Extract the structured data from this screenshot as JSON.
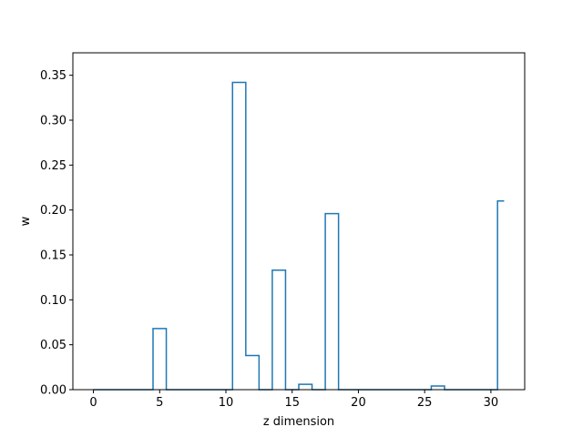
{
  "chart_data": {
    "type": "line",
    "drawstyle": "steps-mid",
    "title": "",
    "xlabel": "z dimension",
    "ylabel": "w",
    "xlim": [
      -1.55,
      32.55
    ],
    "ylim": [
      0,
      0.375
    ],
    "xticks": [
      0,
      5,
      10,
      15,
      20,
      25,
      30
    ],
    "xtick_labels": [
      "0",
      "5",
      "10",
      "15",
      "20",
      "25",
      "30"
    ],
    "yticks": [
      0.0,
      0.05,
      0.1,
      0.15,
      0.2,
      0.25,
      0.3,
      0.35
    ],
    "ytick_labels": [
      "0.00",
      "0.05",
      "0.10",
      "0.15",
      "0.20",
      "0.25",
      "0.30",
      "0.35"
    ],
    "grid": false,
    "series": [
      {
        "color": "#1f77b4",
        "x": [
          0,
          1,
          2,
          3,
          4,
          5,
          6,
          7,
          8,
          9,
          10,
          11,
          12,
          13,
          14,
          15,
          16,
          17,
          18,
          19,
          20,
          21,
          22,
          23,
          24,
          25,
          26,
          27,
          28,
          29,
          30,
          31
        ],
        "y": [
          0,
          0,
          0,
          0,
          0,
          0.068,
          0,
          0,
          0,
          0,
          0,
          0.342,
          0.038,
          0,
          0.133,
          0,
          0.006,
          0,
          0.196,
          0,
          0,
          0,
          0,
          0,
          0,
          0,
          0.004,
          0,
          0,
          0,
          0,
          0.21
        ]
      }
    ]
  }
}
